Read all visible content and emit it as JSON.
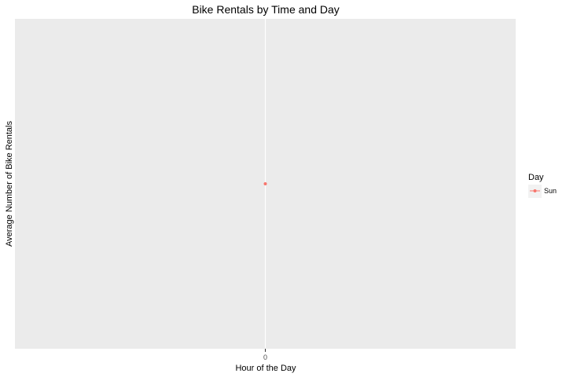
{
  "chart_data": {
    "type": "line",
    "title": "Bike Rentals by Time and Day",
    "xlabel": "Hour of the Day",
    "ylabel": "Average Number of Bike Rentals",
    "x_ticks": [
      "0"
    ],
    "xlim": [
      -0.05,
      0.05
    ],
    "ylim": [
      -1,
      1
    ],
    "grid": true,
    "legend": {
      "title": "Day",
      "placement": "right"
    },
    "series": [
      {
        "name": "Sun",
        "color": "#F8766D",
        "points": [
          {
            "x": 0,
            "y": 0
          }
        ]
      }
    ],
    "colors": {
      "panel_background": "#EBEBEB",
      "grid": "#FFFFFF",
      "tick": "#333333"
    }
  }
}
